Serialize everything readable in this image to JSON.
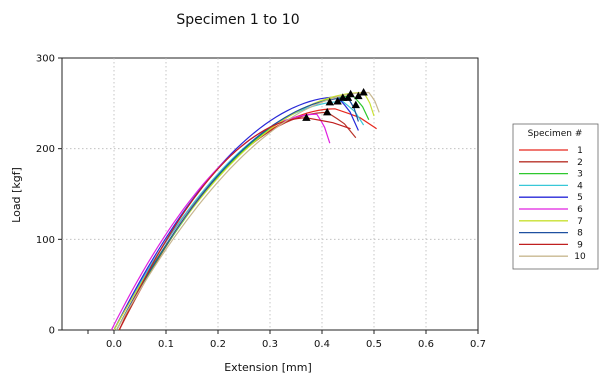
{
  "chart_data": {
    "type": "line",
    "title": "Specimen 1 to 10",
    "xlabel": "Extension [mm]",
    "ylabel": "Load [kgf]",
    "xlim": [
      -0.1,
      0.7
    ],
    "ylim": [
      0,
      300
    ],
    "x_ticks": [
      "0.0",
      "0.1",
      "0.2",
      "0.3",
      "0.4",
      "0.5",
      "0.6",
      "0.7"
    ],
    "x_tick_values": [
      0.0,
      0.1,
      0.2,
      0.3,
      0.4,
      0.5,
      0.6,
      0.7
    ],
    "y_ticks": [
      "0",
      "100",
      "200",
      "300"
    ],
    "y_tick_values": [
      0,
      100,
      200,
      300
    ],
    "grid": true,
    "legend_title": "Specimen #",
    "legend_placement": "right",
    "series": [
      {
        "name": "1",
        "color": "#e8281e",
        "x0": 0.0,
        "peak": [
          0.425,
          244
        ],
        "end": [
          0.505,
          222
        ]
      },
      {
        "name": "2",
        "color": "#b8332a",
        "x0": 0.01,
        "peak": [
          0.41,
          240
        ],
        "end": [
          0.465,
          212
        ]
      },
      {
        "name": "3",
        "color": "#2ec82e",
        "x0": 0.005,
        "peak": [
          0.46,
          258
        ],
        "end": [
          0.49,
          232
        ]
      },
      {
        "name": "4",
        "color": "#38c8d8",
        "x0": 0.0,
        "peak": [
          0.44,
          252
        ],
        "end": [
          0.48,
          226
        ]
      },
      {
        "name": "5",
        "color": "#2828d8",
        "x0": 0.0,
        "peak": [
          0.43,
          257
        ],
        "end": [
          0.47,
          220
        ]
      },
      {
        "name": "6",
        "color": "#e020e0",
        "x0": -0.005,
        "peak": [
          0.39,
          238
        ],
        "end": [
          0.415,
          206
        ]
      },
      {
        "name": "7",
        "color": "#c8e030",
        "x0": 0.0,
        "peak": [
          0.48,
          262
        ],
        "end": [
          0.5,
          236
        ]
      },
      {
        "name": "8",
        "color": "#1e50a0",
        "x0": 0.005,
        "peak": [
          0.45,
          256
        ],
        "end": [
          0.47,
          230
        ]
      },
      {
        "name": "9",
        "color": "#c02020",
        "x0": 0.01,
        "peak": [
          0.37,
          234
        ],
        "end": [
          0.455,
          222
        ]
      },
      {
        "name": "10",
        "color": "#c8b890",
        "x0": 0.005,
        "peak": [
          0.49,
          262
        ],
        "end": [
          0.51,
          240
        ]
      }
    ],
    "markers": [
      [
        0.37,
        234
      ],
      [
        0.41,
        240
      ],
      [
        0.415,
        251
      ],
      [
        0.43,
        252
      ],
      [
        0.44,
        256
      ],
      [
        0.45,
        256
      ],
      [
        0.455,
        260
      ],
      [
        0.465,
        248
      ],
      [
        0.48,
        262
      ],
      [
        0.47,
        258
      ]
    ]
  }
}
